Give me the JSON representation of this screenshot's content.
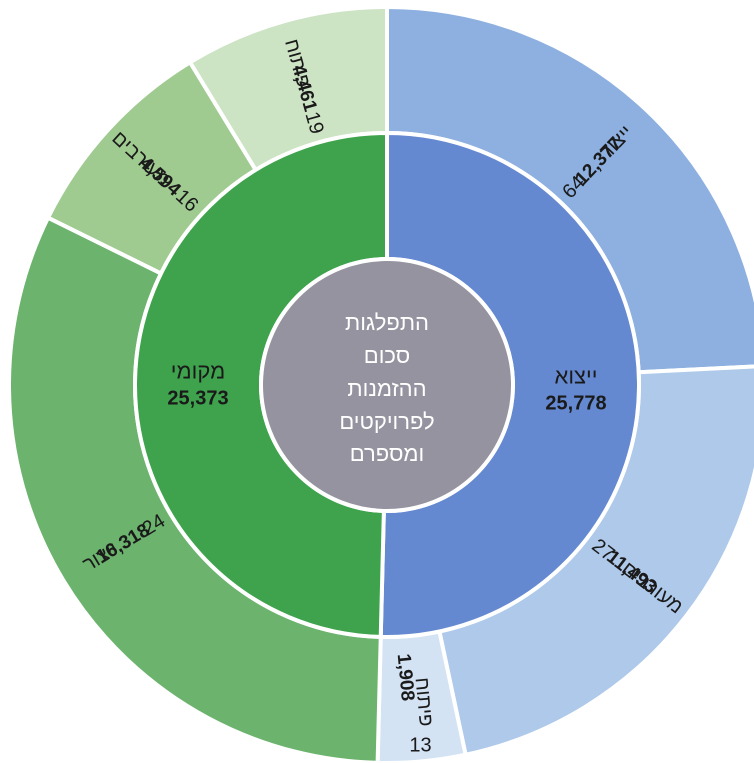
{
  "chart_data": {
    "type": "sunburst",
    "title_lines": [
      "התפלגות",
      "סכום",
      "ההזמנות",
      "לפרויקטים",
      "ומספרם"
    ],
    "inner": [
      {
        "name": "ייצוא",
        "value": "25,778",
        "numeric": 25778,
        "color": "#6489d0"
      },
      {
        "name": "מקומי",
        "value": "25,373",
        "numeric": 25373,
        "color": "#3fa34d"
      }
    ],
    "outer": [
      {
        "parent": "ייצוא",
        "name": "ייצור",
        "value": "12,377",
        "numeric": 12377,
        "count": "64",
        "color": "#8db0e0"
      },
      {
        "parent": "ייצוא",
        "name": "מעורבים",
        "value": "11,493",
        "numeric": 11493,
        "count": "27",
        "color": "#aec9ea"
      },
      {
        "parent": "ייצוא",
        "name": "פיתוח",
        "value": "1,908",
        "numeric": 1908,
        "count": "13",
        "color": "#d4e3f4"
      },
      {
        "parent": "מקומי",
        "name": "ייצור",
        "value": "16,318",
        "numeric": 16318,
        "count": "24",
        "color": "#6cb36e"
      },
      {
        "parent": "מקומי",
        "name": "מעורבים",
        "value": "4,594",
        "numeric": 4594,
        "count": "16",
        "color": "#9fcb91"
      },
      {
        "parent": "מקומי",
        "name": "פיתוח",
        "value": "4,461",
        "numeric": 4461,
        "count": "19",
        "color": "#cce3c4"
      }
    ],
    "center_color": "#95939f"
  }
}
